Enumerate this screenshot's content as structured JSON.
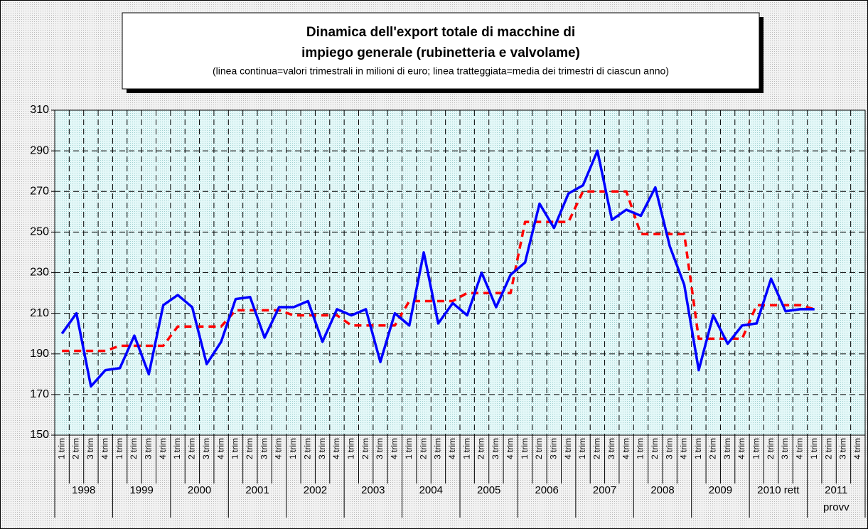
{
  "chart_data": {
    "type": "line",
    "title": [
      "Dinamica dell'export totale di macchine di",
      "impiego generale (rubinetteria e valvolame)"
    ],
    "subtitle": "(linea continua=valori trimestrali in milioni di euro; linea tratteggiata=media dei trimestri di ciascun anno)",
    "categories": [
      "1 trim",
      "2 trim",
      "3 trim",
      "4 trim",
      "1 trim",
      "2 trim",
      "3 trim",
      "4 trim",
      "1 trim",
      "2 trim",
      "3 trim",
      "4 trim",
      "1 trim",
      "2 trim",
      "3 trim",
      "4 trim",
      "1 trim",
      "2 trim",
      "3 trim",
      "4 trim",
      "1 trim",
      "2 trim",
      "3 trim",
      "4 trim",
      "1 trim",
      "2 trim",
      "3 trim",
      "4 trim",
      "1 trim",
      "2 trim",
      "3 trim",
      "4 trim",
      "1 trim",
      "2 trim",
      "3 trim",
      "4 trim",
      "1 trim",
      "2 trim",
      "3 trim",
      "4 trim",
      "1 trim",
      "2 trim",
      "3 trim",
      "4 trim",
      "1 trim",
      "2 trim",
      "3 trim",
      "4 trim",
      "1 trim",
      "2 trim",
      "3 trim",
      "4 trim",
      "1 trim",
      "2 trim",
      "3 trim",
      "4 trim"
    ],
    "groups": [
      {
        "label": "1998"
      },
      {
        "label": "1999"
      },
      {
        "label": "2000"
      },
      {
        "label": "2001"
      },
      {
        "label": "2002"
      },
      {
        "label": "2003"
      },
      {
        "label": "2004"
      },
      {
        "label": "2005"
      },
      {
        "label": "2006"
      },
      {
        "label": "2007"
      },
      {
        "label": "2008"
      },
      {
        "label": "2009"
      },
      {
        "label": "2010 rett"
      },
      {
        "label": "2011",
        "sublabel": "provv"
      }
    ],
    "series": [
      {
        "color": "#0000ff",
        "dashed": false,
        "values": [
          200,
          210,
          174,
          182,
          183,
          199,
          180,
          214,
          219,
          213,
          185,
          196,
          217,
          218,
          198,
          213,
          213,
          216,
          196,
          212,
          209,
          212,
          186,
          210,
          204,
          240,
          205,
          215,
          209,
          230,
          213,
          229,
          235,
          264,
          252,
          269,
          273,
          290,
          256,
          261,
          258,
          272,
          243,
          224,
          182,
          209,
          195,
          204,
          205,
          227,
          211,
          212,
          212,
          null,
          null,
          null
        ]
      },
      {
        "color": "#ff0000",
        "dashed": true,
        "values": [
          191.5,
          191.5,
          191.5,
          191.5,
          194,
          194,
          194,
          194,
          203.5,
          203.5,
          203.5,
          203.5,
          211.5,
          211.5,
          211.5,
          211.5,
          209,
          209,
          209,
          209,
          204,
          204,
          204,
          204,
          216,
          216,
          216,
          216,
          220,
          220,
          220,
          220,
          255,
          255,
          255,
          255,
          270,
          270,
          270,
          270,
          249,
          249,
          249,
          249,
          197.5,
          197.5,
          197.5,
          197.5,
          214,
          214,
          214,
          214,
          212,
          null,
          null,
          null
        ]
      }
    ],
    "ylim": [
      150,
      310
    ],
    "yticks": [
      150,
      170,
      190,
      210,
      230,
      250,
      270,
      290,
      310
    ],
    "grid": true
  }
}
